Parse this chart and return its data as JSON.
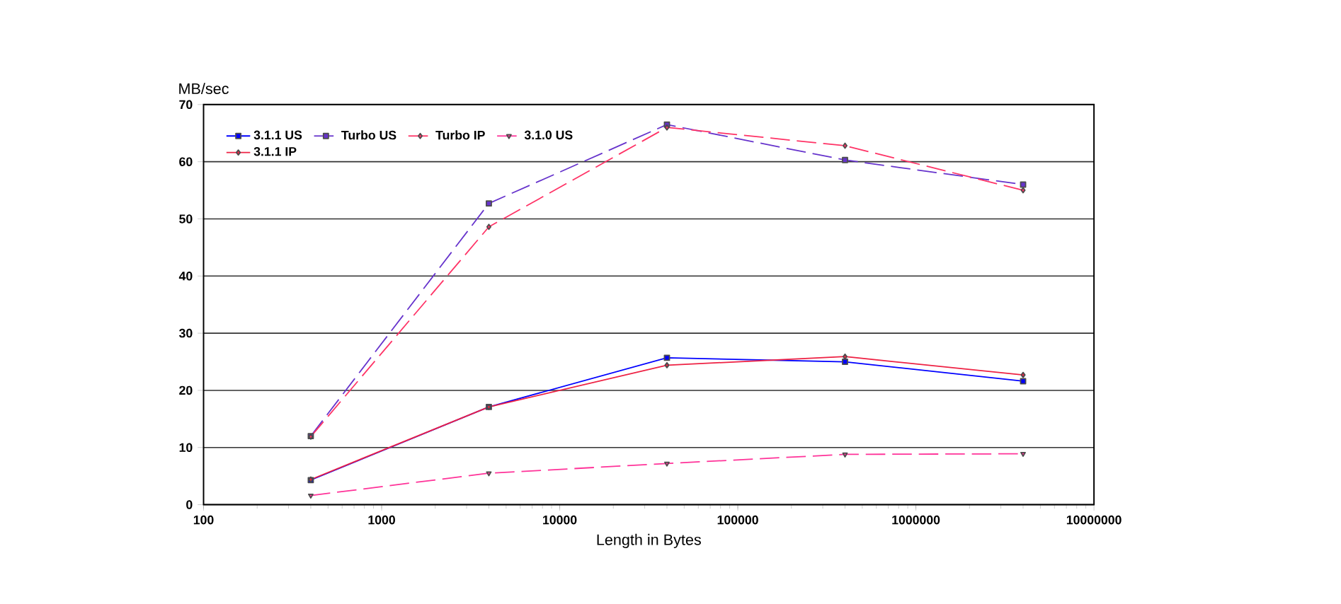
{
  "chart_data": {
    "type": "line",
    "xlabel": "Length in Bytes",
    "ylabel": "MB/sec",
    "log": "x",
    "x": [
      400,
      4000,
      40000,
      400000,
      4000000
    ],
    "xlim": [
      100,
      10000000
    ],
    "xticks": [
      100,
      1000,
      10000,
      100000,
      1000000,
      10000000
    ],
    "ylim": [
      0,
      70
    ],
    "yticks": [
      0,
      10,
      20,
      30,
      40,
      50,
      60,
      70
    ],
    "grid": "y",
    "legend": "top left",
    "series": [
      {
        "name": "3.1.1  US",
        "color": "#0000ff",
        "marker": "square",
        "line_style": "solid",
        "values": [
          4.3,
          17.1,
          25.7,
          25.0,
          21.6
        ]
      },
      {
        "name": "Turbo US",
        "color": "#6633cc",
        "marker": "square",
        "line_style": "dashed",
        "values": [
          12,
          52.7,
          66.5,
          60.3,
          56.0
        ]
      },
      {
        "name": "Turbo IP",
        "color": "#ff3366",
        "marker": "diamond",
        "line_style": "dashed",
        "values": [
          11.9,
          48.6,
          66.0,
          62.8,
          55.0
        ]
      },
      {
        "name": "3.1.0  US",
        "color": "#ff3399",
        "marker": "triangle",
        "line_style": "dashed",
        "values": [
          1.6,
          5.5,
          7.2,
          8.8,
          8.9
        ]
      },
      {
        "name": "3.1.1  IP",
        "color": "#ee2244",
        "marker": "diamond",
        "line_style": "solid",
        "values": [
          4.4,
          17.1,
          24.4,
          25.9,
          22.7
        ]
      }
    ]
  }
}
